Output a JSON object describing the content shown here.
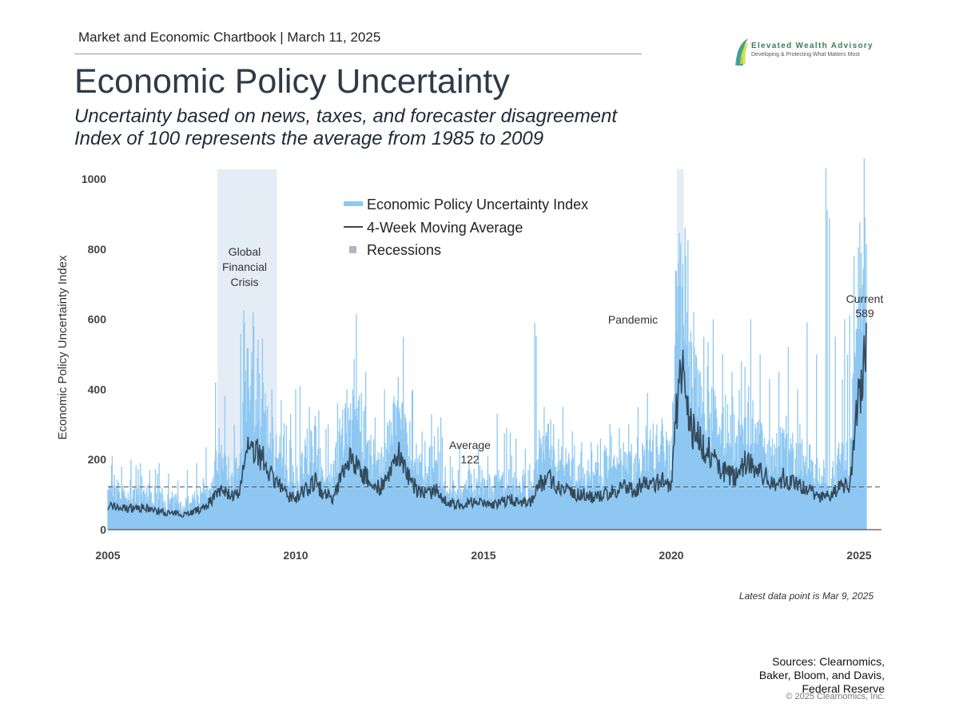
{
  "header": {
    "chartbook": "Market and Economic Chartbook | March 11, 2025"
  },
  "title": "Economic Policy Uncertainty",
  "subtitle": [
    "Uncertainty based on news, taxes, and forecaster disagreement",
    "Index of 100 represents the average from 1985 to 2009"
  ],
  "logo": {
    "name": "Elevated Wealth Advisory",
    "tagline": "Developing & Protecting What Matters Most",
    "icon": "leaf-swoosh-icon"
  },
  "footer": {
    "latest": "Latest data point is Mar 9, 2025",
    "sources": [
      "Sources: Clearnomics,",
      "Baker, Bloom, and Davis,",
      "Federal Reserve"
    ],
    "copyright": "© 2025 Clearnomics, Inc."
  },
  "chart_data": {
    "type": "area",
    "title": "",
    "xlabel": "",
    "ylabel": "Economic Policy Uncertainty Index",
    "xlim": [
      2005,
      2025.6
    ],
    "ylim": [
      0,
      1000
    ],
    "xticks": [
      "2005",
      "2010",
      "2015",
      "2020",
      "2025"
    ],
    "yticks": [
      "0",
      "200",
      "400",
      "600",
      "800",
      "1000"
    ],
    "grid": false,
    "legend_position": "top-center",
    "colors": {
      "index": "#8ec8f2",
      "index_fill": "#cde6f9",
      "moving_average": "#34495a",
      "recession": "#e4ecf6",
      "recession_legend": "#aab8c2",
      "average_line": "#555555"
    },
    "x_quarters_start": "2005 Q1",
    "series": [
      {
        "name": "Economic Policy Uncertainty Index",
        "note": "quarterly peak values",
        "values": [
          210,
          180,
          200,
          190,
          170,
          190,
          160,
          140,
          170,
          190,
          235,
          420,
          380,
          300,
          625,
          620,
          545,
          400,
          370,
          330,
          410,
          350,
          340,
          300,
          360,
          400,
          615,
          450,
          320,
          400,
          380,
          550,
          400,
          280,
          330,
          320,
          210,
          240,
          200,
          230,
          210,
          330,
          290,
          260,
          230,
          590,
          350,
          300,
          350,
          280,
          250,
          250,
          260,
          300,
          290,
          300,
          350,
          390,
          300,
          280,
          740,
          860,
          520,
          550,
          600,
          500,
          450,
          480,
          600,
          500,
          430,
          450,
          520,
          400,
          590,
          500,
          1030,
          550,
          600,
          780,
          745
        ]
      },
      {
        "name": "4-Week Moving Average",
        "values": [
          70,
          65,
          60,
          65,
          60,
          55,
          50,
          45,
          45,
          50,
          60,
          85,
          110,
          100,
          95,
          250,
          220,
          180,
          130,
          100,
          90,
          110,
          140,
          100,
          90,
          160,
          210,
          170,
          130,
          120,
          150,
          220,
          150,
          110,
          100,
          110,
          80,
          70,
          75,
          80,
          75,
          70,
          80,
          85,
          75,
          80,
          130,
          150,
          120,
          110,
          100,
          100,
          90,
          100,
          110,
          120,
          110,
          130,
          130,
          140,
          120,
          500,
          300,
          250,
          220,
          180,
          160,
          150,
          200,
          170,
          150,
          130,
          150,
          130,
          120,
          110,
          90,
          100,
          120,
          130,
          400
        ]
      }
    ],
    "recessions": [
      {
        "name": "Recessions",
        "start": 2007.92,
        "end": 2009.5,
        "label": [
          "Global",
          "Financial",
          "Crisis"
        ]
      },
      {
        "start": 2020.15,
        "end": 2020.33,
        "label": [
          "Pandemic"
        ]
      }
    ],
    "average": {
      "value": 122,
      "label": [
        "Average",
        "122"
      ]
    },
    "current": {
      "value": 589,
      "label": [
        "Current",
        "589"
      ]
    },
    "legend": [
      "Economic Policy Uncertainty Index",
      "4-Week Moving Average",
      "Recessions"
    ]
  }
}
